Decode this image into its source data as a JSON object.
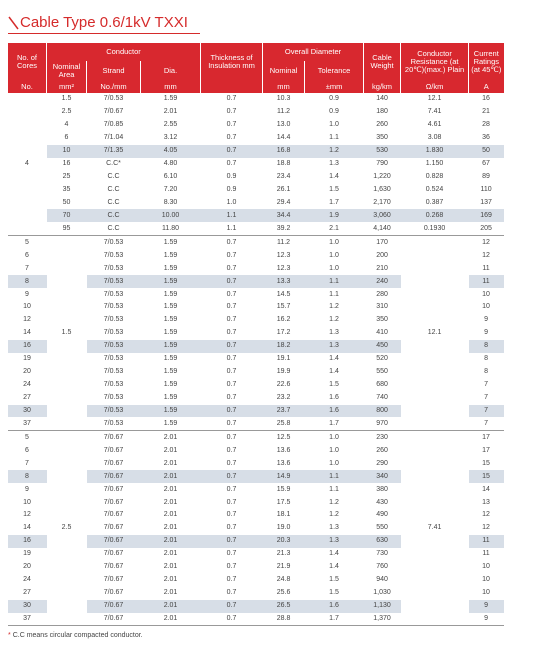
{
  "title": "Cable Type 0.6/1kV TXXI",
  "table": {
    "header": {
      "cores": "No. of Cores",
      "conductor": "Conductor",
      "insulation": "Thickness of Insulation mm",
      "overall_diameter": "Overall Diameter",
      "weight": "Cable Weight",
      "resistance": "Conductor Resistance (at 20℃)(max.) Plain",
      "current": "Current Ratings (at 45℃)",
      "nominal_area": "Nominal Area",
      "strand": "Strand",
      "dia": "Dia.",
      "nominal": "Nominal",
      "tolerance": "Tolerance"
    },
    "units": {
      "cores": "No.",
      "area": "mm²",
      "strand": "No./mm",
      "dia": "mm",
      "nominal": "mm",
      "tolerance": "±mm",
      "weight": "kg/km",
      "resistance": "Ω/km",
      "current": "A"
    },
    "groups": [
      {
        "cores": "4",
        "rows": [
          [
            "1.5",
            "7/0.53",
            "1.59",
            "0.7",
            "10.3",
            "0.9",
            "140",
            "12.1",
            "16"
          ],
          [
            "2.5",
            "7/0.67",
            "2.01",
            "0.7",
            "11.2",
            "0.9",
            "180",
            "7.41",
            "21"
          ],
          [
            "4",
            "7/0.85",
            "2.55",
            "0.7",
            "13.0",
            "1.0",
            "260",
            "4.61",
            "28"
          ],
          [
            "6",
            "7/1.04",
            "3.12",
            "0.7",
            "14.4",
            "1.1",
            "350",
            "3.08",
            "36"
          ],
          [
            "10",
            "7/1.35",
            "4.05",
            "0.7",
            "16.8",
            "1.2",
            "530",
            "1.830",
            "50"
          ],
          [
            "16",
            "C.C*",
            "4.80",
            "0.7",
            "18.8",
            "1.3",
            "790",
            "1.150",
            "67"
          ],
          [
            "25",
            "C.C",
            "6.10",
            "0.9",
            "23.4",
            "1.4",
            "1,220",
            "0.828",
            "89"
          ],
          [
            "35",
            "C.C",
            "7.20",
            "0.9",
            "26.1",
            "1.5",
            "1,630",
            "0.524",
            "110"
          ],
          [
            "50",
            "C.C",
            "8.30",
            "1.0",
            "29.4",
            "1.7",
            "2,170",
            "0.387",
            "137"
          ],
          [
            "70",
            "C.C",
            "10.00",
            "1.1",
            "34.4",
            "1.9",
            "3,060",
            "0.268",
            "169"
          ],
          [
            "95",
            "C.C",
            "11.80",
            "1.1",
            "39.2",
            "2.1",
            "4,140",
            "0.1930",
            "205"
          ]
        ]
      },
      {
        "area": "1.5",
        "resistance": "12.1",
        "rows": [
          [
            "5",
            "7/0.53",
            "1.59",
            "0.7",
            "11.2",
            "1.0",
            "170",
            "12"
          ],
          [
            "6",
            "7/0.53",
            "1.59",
            "0.7",
            "12.3",
            "1.0",
            "200",
            "12"
          ],
          [
            "7",
            "7/0.53",
            "1.59",
            "0.7",
            "12.3",
            "1.0",
            "210",
            "11"
          ],
          [
            "8",
            "7/0.53",
            "1.59",
            "0.7",
            "13.3",
            "1.1",
            "240",
            "11"
          ],
          [
            "9",
            "7/0.53",
            "1.59",
            "0.7",
            "14.5",
            "1.1",
            "280",
            "10"
          ],
          [
            "10",
            "7/0.53",
            "1.59",
            "0.7",
            "15.7",
            "1.2",
            "310",
            "10"
          ],
          [
            "12",
            "7/0.53",
            "1.59",
            "0.7",
            "16.2",
            "1.2",
            "350",
            "9"
          ],
          [
            "14",
            "7/0.53",
            "1.59",
            "0.7",
            "17.2",
            "1.3",
            "410",
            "9"
          ],
          [
            "16",
            "7/0.53",
            "1.59",
            "0.7",
            "18.2",
            "1.3",
            "450",
            "8"
          ],
          [
            "19",
            "7/0.53",
            "1.59",
            "0.7",
            "19.1",
            "1.4",
            "520",
            "8"
          ],
          [
            "20",
            "7/0.53",
            "1.59",
            "0.7",
            "19.9",
            "1.4",
            "550",
            "8"
          ],
          [
            "24",
            "7/0.53",
            "1.59",
            "0.7",
            "22.6",
            "1.5",
            "680",
            "7"
          ],
          [
            "27",
            "7/0.53",
            "1.59",
            "0.7",
            "23.2",
            "1.6",
            "740",
            "7"
          ],
          [
            "30",
            "7/0.53",
            "1.59",
            "0.7",
            "23.7",
            "1.6",
            "800",
            "7"
          ],
          [
            "37",
            "7/0.53",
            "1.59",
            "0.7",
            "25.8",
            "1.7",
            "970",
            "7"
          ]
        ]
      },
      {
        "area": "2.5",
        "resistance": "7.41",
        "rows": [
          [
            "5",
            "7/0.67",
            "2.01",
            "0.7",
            "12.5",
            "1.0",
            "230",
            "17"
          ],
          [
            "6",
            "7/0.67",
            "2.01",
            "0.7",
            "13.6",
            "1.0",
            "260",
            "17"
          ],
          [
            "7",
            "7/0.67",
            "2.01",
            "0.7",
            "13.6",
            "1.0",
            "290",
            "15"
          ],
          [
            "8",
            "7/0.67",
            "2.01",
            "0.7",
            "14.9",
            "1.1",
            "340",
            "15"
          ],
          [
            "9",
            "7/0.67",
            "2.01",
            "0.7",
            "15.9",
            "1.1",
            "380",
            "14"
          ],
          [
            "10",
            "7/0.67",
            "2.01",
            "0.7",
            "17.5",
            "1.2",
            "430",
            "13"
          ],
          [
            "12",
            "7/0.67",
            "2.01",
            "0.7",
            "18.1",
            "1.2",
            "490",
            "12"
          ],
          [
            "14",
            "7/0.67",
            "2.01",
            "0.7",
            "19.0",
            "1.3",
            "550",
            "12"
          ],
          [
            "16",
            "7/0.67",
            "2.01",
            "0.7",
            "20.3",
            "1.3",
            "630",
            "11"
          ],
          [
            "19",
            "7/0.67",
            "2.01",
            "0.7",
            "21.3",
            "1.4",
            "730",
            "11"
          ],
          [
            "20",
            "7/0.67",
            "2.01",
            "0.7",
            "21.9",
            "1.4",
            "760",
            "10"
          ],
          [
            "24",
            "7/0.67",
            "2.01",
            "0.7",
            "24.8",
            "1.5",
            "940",
            "10"
          ],
          [
            "27",
            "7/0.67",
            "2.01",
            "0.7",
            "25.6",
            "1.5",
            "1,030",
            "10"
          ],
          [
            "30",
            "7/0.67",
            "2.01",
            "0.7",
            "26.5",
            "1.6",
            "1,130",
            "9"
          ],
          [
            "37",
            "7/0.67",
            "2.01",
            "0.7",
            "28.8",
            "1.7",
            "1,370",
            "9"
          ]
        ]
      }
    ]
  },
  "footnote_mark": "*",
  "footnote": "C.C means circular compacted conductor."
}
